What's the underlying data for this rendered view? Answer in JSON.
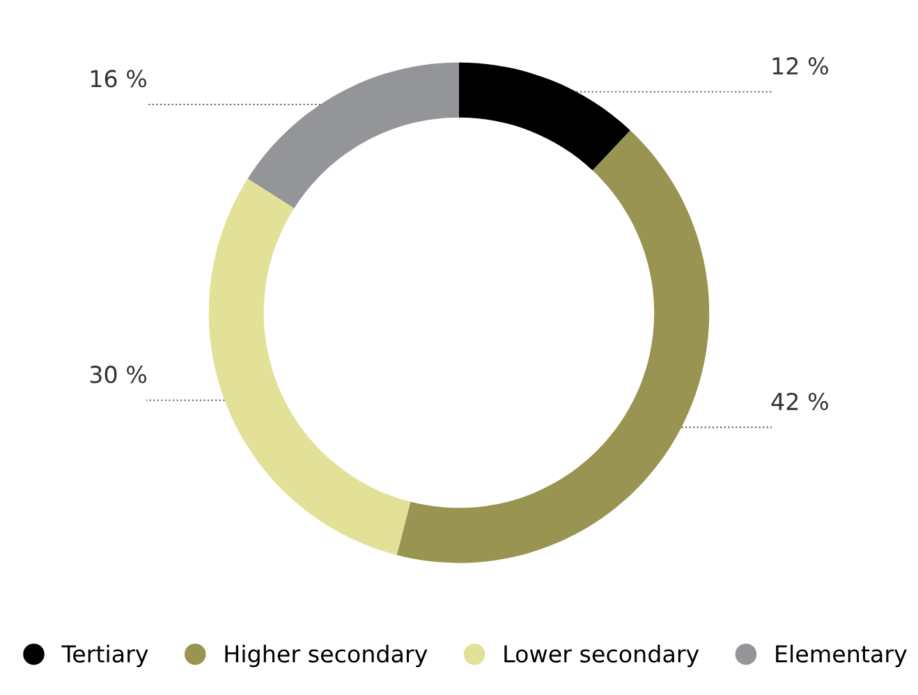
{
  "chart_data": {
    "type": "donut",
    "categories": [
      "Tertiary",
      "Higher secondary",
      "Lower secondary",
      "Elementary"
    ],
    "values": [
      12,
      42,
      30,
      16
    ],
    "colors": [
      "#000000",
      "#999451",
      "#e3e197",
      "#939598"
    ],
    "value_labels": [
      "12 %",
      "42 %",
      "30 %",
      "16 %"
    ],
    "legend": "bottom"
  }
}
